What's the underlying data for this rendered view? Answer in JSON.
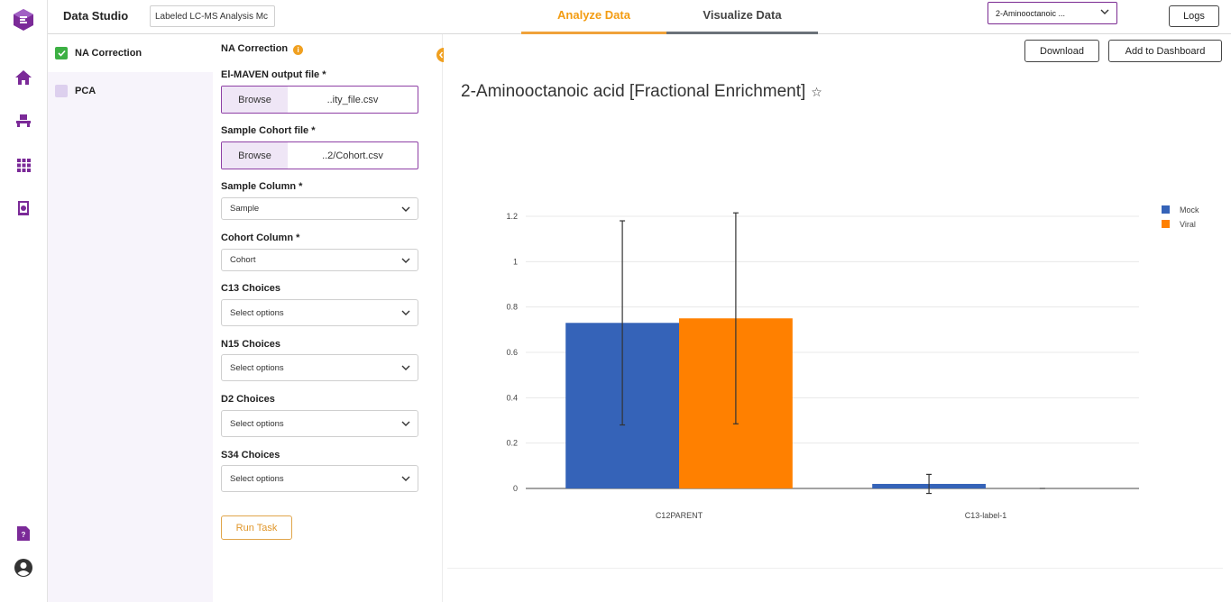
{
  "topbar": {
    "app_title": "Data Studio",
    "project_name": "Labeled LC-MS Analysis Mc",
    "tabs": [
      {
        "label": "Analyze Data",
        "active": true
      },
      {
        "label": "Visualize Data",
        "active": false
      }
    ],
    "metabolite_select": "2-Aminooctanoic ...",
    "logs_label": "Logs"
  },
  "rail": {
    "icons": [
      "app-logo-icon",
      "home-icon",
      "workflow-icon",
      "apps-grid-icon",
      "notebook-icon",
      "help-doc-icon",
      "account-icon"
    ],
    "accent_color": "#7b2a98"
  },
  "modules": [
    {
      "label": "NA Correction",
      "checked": true
    },
    {
      "label": "PCA",
      "checked": false
    }
  ],
  "form": {
    "title": "NA Correction",
    "info_icon": "i",
    "elmaven_label": "El-MAVEN output file *",
    "elmaven_browse": "Browse",
    "elmaven_file": "..ity_file.csv",
    "cohort_file_label": "Sample Cohort file *",
    "cohort_browse": "Browse",
    "cohort_file": "..2/Cohort.csv",
    "sample_col_label": "Sample Column *",
    "sample_col_value": "Sample",
    "cohort_col_label": "Cohort Column *",
    "cohort_col_value": "Cohort",
    "c13_label": "C13 Choices",
    "c13_placeholder": "Select options",
    "n15_label": "N15 Choices",
    "n15_placeholder": "Select options",
    "d2_label": "D2 Choices",
    "d2_placeholder": "Select options",
    "s34_label": "S34 Choices",
    "s34_placeholder": "Select options",
    "run_label": "Run Task"
  },
  "main": {
    "download_label": "Download",
    "add_dashboard_label": "Add to Dashboard",
    "chart_title": "2-Aminooctanoic acid [Fractional Enrichment]",
    "star": "☆"
  },
  "chart_data": {
    "type": "bar",
    "title": "2-Aminooctanoic acid [Fractional Enrichment]",
    "categories": [
      "C12PARENT",
      "C13-label-1"
    ],
    "series": [
      {
        "name": "Mock",
        "color": "#3563b8",
        "values": [
          0.73,
          0.02
        ],
        "error": [
          0.45,
          0.042
        ]
      },
      {
        "name": "Viral",
        "color": "#ff8000",
        "values": [
          0.75,
          0.0
        ],
        "error": [
          0.465,
          0.0
        ]
      }
    ],
    "ylim": [
      0,
      1.2
    ],
    "yticks": [
      "0",
      "0.2",
      "0.4",
      "0.6",
      "0.8",
      "1",
      "1.2"
    ],
    "grid": true,
    "legend": "top-right"
  }
}
